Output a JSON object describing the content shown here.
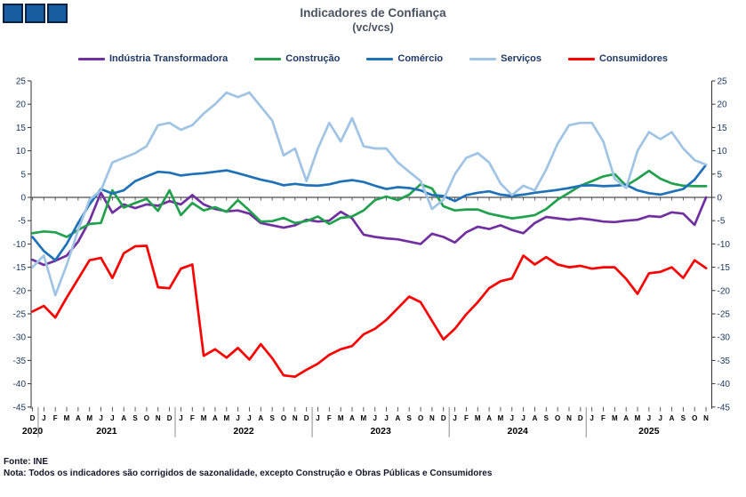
{
  "header": {
    "title": "Indicadores de Confiança",
    "subtitle": "(vc/vcs)"
  },
  "logo": {
    "name": "three-blue-squares-logo",
    "square_count": 3,
    "fill": "#185CA2",
    "border": "#0D2240"
  },
  "legend": {
    "items": [
      {
        "label": "Indústria Transformadora",
        "color": "#7030A0"
      },
      {
        "label": "Construção",
        "color": "#21A14D"
      },
      {
        "label": "Comércio",
        "color": "#1F71B8"
      },
      {
        "label": "Serviços",
        "color": "#A0C4E4"
      },
      {
        "label": "Consumidores",
        "color": "#FE0000"
      }
    ]
  },
  "footer": {
    "source": "Fonte: INE",
    "note": "Nota: Todos os indicadores são corrigidos de sazonalidade, excepto Construção e Obras Públicas e Consumidores"
  },
  "chart_data": {
    "type": "line",
    "title": "Indicadores de Confiança (vc/vcs)",
    "xlabel": "",
    "ylabel": "",
    "ylim": [
      -45,
      25
    ],
    "yticks": [
      25,
      20,
      15,
      10,
      5,
      0,
      -5,
      -10,
      -15,
      -20,
      -25,
      -30,
      -35,
      -40,
      -45
    ],
    "grid": "zero-line-only",
    "legend_position": "top",
    "x_period": "Dec 2020 – Nov 2025, monthly",
    "month_labels": [
      "D",
      "J",
      "F",
      "M",
      "A",
      "M",
      "J",
      "J",
      "A",
      "S",
      "O",
      "N",
      "D",
      "J",
      "F",
      "M",
      "A",
      "M",
      "J",
      "J",
      "A",
      "S",
      "O",
      "N",
      "D",
      "J",
      "F",
      "M",
      "A",
      "M",
      "J",
      "J",
      "A",
      "S",
      "O",
      "N",
      "D",
      "J",
      "F",
      "M",
      "A",
      "M",
      "J",
      "J",
      "A",
      "S",
      "O",
      "N",
      "D",
      "J",
      "F",
      "M",
      "A",
      "M",
      "J",
      "J",
      "A",
      "S",
      "O",
      "N"
    ],
    "year_groups": [
      {
        "label": "2020",
        "months": 1
      },
      {
        "label": "2021",
        "months": 12
      },
      {
        "label": "2022",
        "months": 12
      },
      {
        "label": "2023",
        "months": 12
      },
      {
        "label": "2024",
        "months": 12
      },
      {
        "label": "2025",
        "months": 11
      }
    ],
    "series": [
      {
        "name": "Indústria Transformadora",
        "color": "#7030A0",
        "values": [
          -13.4,
          -14.5,
          -13.6,
          -12.5,
          -9.5,
          -5,
          1,
          -3.3,
          -1.5,
          -2.3,
          -1.5,
          -1.8,
          -0.8,
          -1.5,
          0.5,
          -1.5,
          -2.5,
          -3,
          -2.8,
          -3.5,
          -5.5,
          -6,
          -6.5,
          -6,
          -4.8,
          -5.2,
          -5,
          -3.1,
          -4.5,
          -8,
          -8.5,
          -8.8,
          -9,
          -9.5,
          -10,
          -7.8,
          -8.5,
          -9.7,
          -7.5,
          -6.3,
          -6.8,
          -6,
          -7,
          -7.7,
          -5.5,
          -4.2,
          -4.5,
          -4.8,
          -4.5,
          -4.8,
          -5.2,
          -5.3,
          -5,
          -4.8,
          -4,
          -4.2,
          -3.2,
          -3.5,
          -5.9,
          0
        ]
      },
      {
        "name": "Construção",
        "color": "#21A14D",
        "values": [
          -7.7,
          -7.3,
          -7.5,
          -8.5,
          -7,
          -5.7,
          -5.5,
          1.5,
          -2.2,
          -1.2,
          -0.3,
          -2.9,
          1.5,
          -3.8,
          -1.2,
          -2.8,
          -2.1,
          -3.1,
          -0.6,
          -2.8,
          -5.2,
          -5.1,
          -4.4,
          -5.5,
          -5.1,
          -4.1,
          -5.7,
          -4.4,
          -4.1,
          -2.8,
          -0.6,
          0.2,
          -0.6,
          0.6,
          2.8,
          1.9,
          -1.9,
          -2.8,
          -2.6,
          -2.6,
          -3.5,
          -4,
          -4.5,
          -4.2,
          -3.8,
          -2.5,
          -0.5,
          1,
          2.5,
          3.5,
          4.5,
          5,
          2.5,
          4,
          5.7,
          4,
          3,
          2.5,
          2.4,
          2.4
        ]
      },
      {
        "name": "Comércio",
        "color": "#1F71B8",
        "values": [
          -8.5,
          -11.5,
          -13.5,
          -10,
          -5.5,
          -1.5,
          1.8,
          0.8,
          1.5,
          3.5,
          4.5,
          5.5,
          5.3,
          4.7,
          5,
          5.2,
          5.5,
          5.8,
          5.2,
          4.5,
          3.8,
          3.3,
          2.6,
          2.9,
          2.6,
          2.5,
          2.8,
          3.4,
          3.7,
          3.3,
          2.5,
          1.8,
          2.2,
          2,
          1.5,
          0.5,
          0.3,
          -0.8,
          0.5,
          1,
          1.3,
          0.6,
          0.3,
          0.6,
          1,
          1.3,
          1.6,
          2,
          2.5,
          2.6,
          2.4,
          2.5,
          2.7,
          1.5,
          0.9,
          0.6,
          1.2,
          1.8,
          3.8,
          7
        ]
      },
      {
        "name": "Serviços",
        "color": "#A0C4E4",
        "values": [
          -15,
          -12.5,
          -21,
          -14.5,
          -7,
          -0.5,
          1.5,
          7.5,
          8.5,
          9.5,
          11,
          15.5,
          16,
          14.5,
          15.5,
          18,
          20,
          22.5,
          21.5,
          22.5,
          19.5,
          16.5,
          9,
          10.5,
          3.5,
          10.5,
          16,
          12,
          17,
          11,
          10.5,
          10.5,
          7.5,
          5.5,
          3.5,
          -2.5,
          -0.5,
          5,
          8.5,
          9.5,
          7.5,
          3,
          0.5,
          2.5,
          1.5,
          6,
          11.5,
          15.5,
          16,
          16,
          12,
          4,
          2,
          10,
          14,
          12.5,
          14,
          10.5,
          8,
          7
        ]
      },
      {
        "name": "Consumidores",
        "color": "#FE0000",
        "values": [
          -24.5,
          -23.3,
          -25.8,
          -21.5,
          -17.5,
          -13.5,
          -13,
          -17.3,
          -12,
          -10.5,
          -10.4,
          -19.3,
          -19.5,
          -15.3,
          -14.4,
          -34,
          -32.6,
          -34.4,
          -32.3,
          -34.8,
          -31.5,
          -34.5,
          -38.2,
          -38.5,
          -37,
          -35.7,
          -33.8,
          -32.6,
          -31.9,
          -29.4,
          -28.2,
          -26.3,
          -23.8,
          -21.3,
          -22.5,
          -26.5,
          -30.5,
          -28.2,
          -25.1,
          -22.5,
          -19.5,
          -18,
          -17.4,
          -12.5,
          -14.4,
          -12.8,
          -14.4,
          -15,
          -14.7,
          -15.3,
          -15,
          -15,
          -17.5,
          -20.7,
          -16.3,
          -16,
          -15,
          -17.3,
          -13.5,
          -15.2
        ]
      }
    ]
  }
}
